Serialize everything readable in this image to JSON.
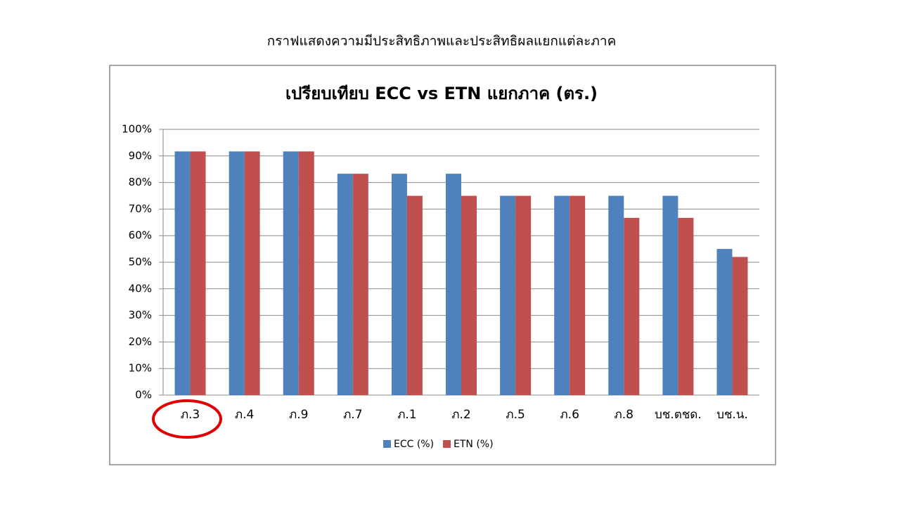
{
  "slide_title": "กราฟแสดงความมีประสิทธิภาพและประสิทธิผลแยกแต่ละภาค",
  "chart_data": {
    "type": "bar",
    "title": "เปรียบเทียบ ECC vs ETN แยกภาค (ตร.)",
    "categories": [
      "ภ.3",
      "ภ.4",
      "ภ.9",
      "ภ.7",
      "ภ.1",
      "ภ.2",
      "ภ.5",
      "ภ.6",
      "ภ.8",
      "บช.ตชด.",
      "บช.น."
    ],
    "series": [
      {
        "name": "ECC (%)",
        "color": "#4f81bd",
        "values": [
          91.7,
          91.7,
          91.7,
          83.3,
          83.3,
          83.3,
          75,
          75,
          75,
          75,
          55
        ]
      },
      {
        "name": "ETN (%)",
        "color": "#c0504d",
        "values": [
          91.7,
          91.7,
          91.7,
          83.3,
          75,
          75,
          75,
          75,
          66.7,
          66.7,
          52
        ]
      }
    ],
    "ylim": [
      0,
      100
    ],
    "yticks": [
      {
        "value": 0,
        "label": "0%"
      },
      {
        "value": 10,
        "label": "10%"
      },
      {
        "value": 20,
        "label": "20%"
      },
      {
        "value": 30,
        "label": "30%"
      },
      {
        "value": 40,
        "label": "40%"
      },
      {
        "value": 50,
        "label": "50%"
      },
      {
        "value": 60,
        "label": "60%"
      },
      {
        "value": 70,
        "label": "70%"
      },
      {
        "value": 80,
        "label": "80%"
      },
      {
        "value": 90,
        "label": "90%"
      },
      {
        "value": 100,
        "label": "100%"
      }
    ],
    "grid": true,
    "legend": "bottom"
  }
}
